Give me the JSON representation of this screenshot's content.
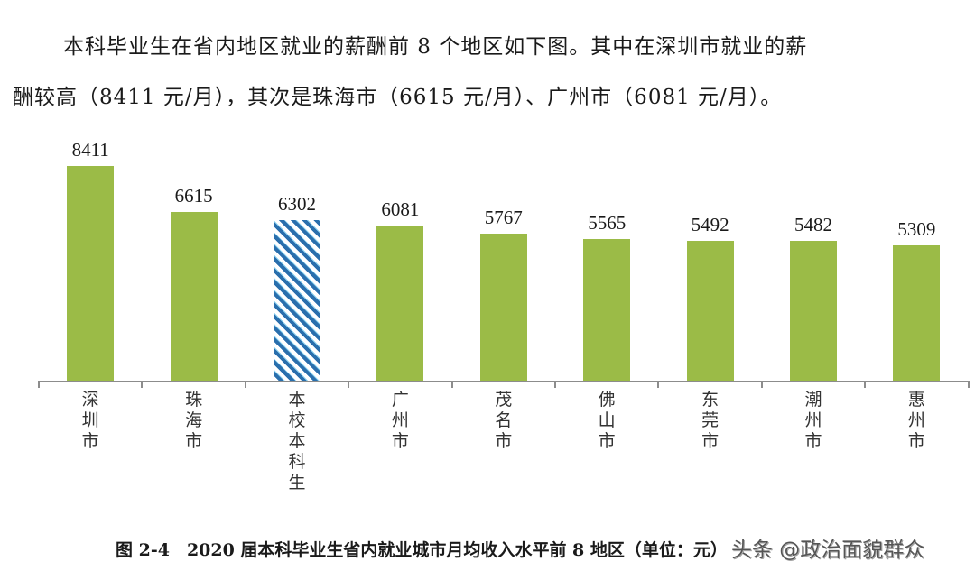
{
  "paragraph": {
    "line1": "本科毕业生在省内地区就业的薪酬前 8 个地区如下图。其中在深圳市就业的薪",
    "line2": "酬较高（8411 元/月），其次是珠海市（6615 元/月）、广州市（6081 元/月）。"
  },
  "caption": "图 2-4　2020 届本科毕业生省内就业城市月均收入水平前 8 地区（单位：元）",
  "watermark": "头条 @政治面貌群众",
  "colors": {
    "bar_green": "#9bbb47",
    "hatch_dark_blue": "#2a6fad",
    "hatch_light_blue": "#8fd4f2",
    "axis": "#8c8c8c"
  },
  "chart_data": {
    "type": "bar",
    "title": "2020 届本科毕业生省内就业城市月均收入水平前 8 地区",
    "xlabel": "",
    "ylabel": "",
    "unit": "元/月",
    "categories": [
      "深圳市",
      "珠海市",
      "本校本科生",
      "广州市",
      "茂名市",
      "佛山市",
      "东莞市",
      "潮州市",
      "惠州市"
    ],
    "values": [
      8411,
      6615,
      6302,
      6081,
      5767,
      5565,
      5492,
      5482,
      5309
    ],
    "highlight": {
      "index": 2,
      "style": "hatched-blue"
    },
    "ylim": [
      0,
      9000
    ],
    "grid": false,
    "legend": null,
    "data_labels": true
  }
}
